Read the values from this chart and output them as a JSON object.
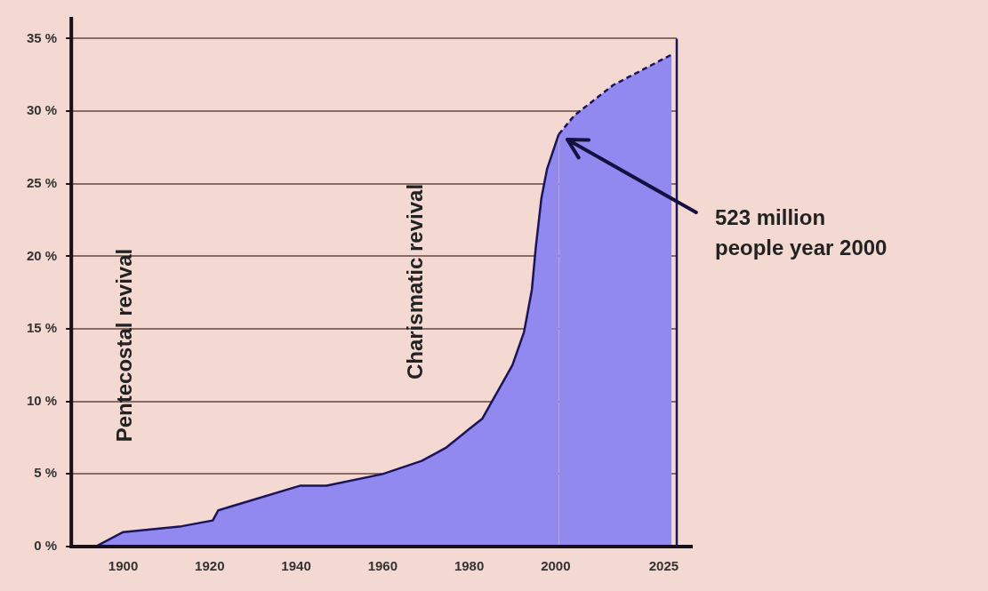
{
  "chart_data": {
    "type": "area",
    "series": [
      {
        "color": "#9189f0",
        "line_style": "solid",
        "x": [
          1893.6,
          1900,
          1913.5,
          1920.7,
          1922,
          1941,
          1947,
          1960,
          1969,
          1974.6,
          1980,
          1983,
          1990,
          1992.7,
          1994.5,
          1995.4,
          1996.7,
          1998,
          2000.7
        ],
        "values": [
          0,
          1.0,
          1.4,
          1.8,
          2.5,
          4.2,
          4.2,
          5.0,
          5.9,
          6.8,
          8.1,
          8.8,
          12.5,
          14.8,
          17.7,
          20.6,
          24.0,
          26.0,
          28.4
        ]
      },
      {
        "color": "#9189f0",
        "line_style": "dashed",
        "x": [
          2000.7,
          2004.3,
          2013.3,
          2026.8
        ],
        "values": [
          28.4,
          29.7,
          31.8,
          33.9
        ]
      }
    ],
    "xlim": [
      1888,
      2028
    ],
    "xticks": [
      1900,
      1920,
      1940,
      1960,
      1980,
      2000,
      2025
    ],
    "ylim": [
      0,
      36.5
    ],
    "yticks": [
      {
        "value": 0,
        "label": "0 %"
      },
      {
        "value": 5,
        "label": "5 %"
      },
      {
        "value": 10,
        "label": "10 %"
      },
      {
        "value": 15,
        "label": "15 %"
      },
      {
        "value": 20,
        "label": "20 %"
      },
      {
        "value": 25,
        "label": "25 %"
      },
      {
        "value": 30,
        "label": "30 %"
      },
      {
        "value": 35,
        "label": "35 %"
      }
    ],
    "grid": "y",
    "legend": false,
    "annotations": [
      "Pentecostal revival",
      "Charismatic revival",
      "523 million\npeople year 2000"
    ]
  }
}
